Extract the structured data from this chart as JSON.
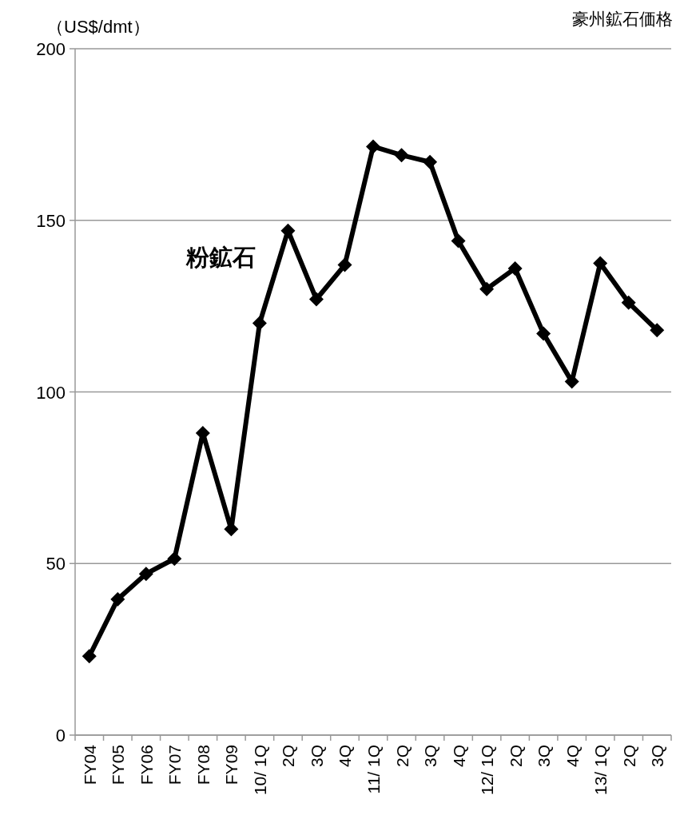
{
  "chart_data": {
    "type": "line",
    "title": "豪州鉱石価格",
    "ylabel": "（US$/dmt）",
    "categories": [
      "FY04",
      "FY05",
      "FY06",
      "FY07",
      "FY08",
      "FY09",
      "10/ 1Q",
      "2Q",
      "3Q",
      "4Q",
      "11/ 1Q",
      "2Q",
      "3Q",
      "4Q",
      "12/ 1Q",
      "2Q",
      "3Q",
      "4Q",
      "13/ 1Q",
      "2Q",
      "3Q"
    ],
    "series": [
      {
        "name": "粉鉱石",
        "color": "#000000",
        "values": [
          23,
          39.6,
          47,
          51.4,
          88,
          60,
          120,
          147,
          127,
          137,
          171.5,
          169,
          167,
          144,
          130,
          136,
          117,
          103,
          137.5,
          126,
          118
        ]
      }
    ],
    "ylim": [
      0,
      200
    ],
    "yticks": [
      0,
      50,
      100,
      150,
      200
    ],
    "grid": "y",
    "marker": "diamond",
    "line_style": "solid"
  }
}
